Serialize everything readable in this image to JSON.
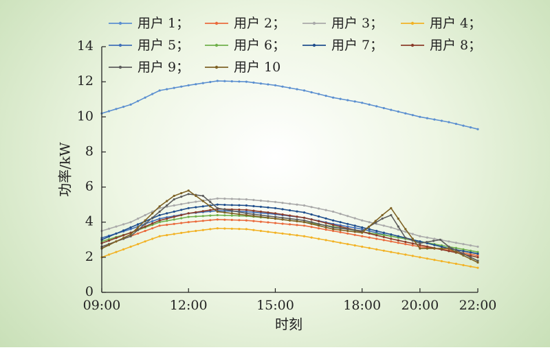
{
  "chart_data": {
    "type": "line",
    "xlabel": "时刻",
    "ylabel": "功率/kW",
    "ylim": [
      0,
      14
    ],
    "yticks": [
      "0",
      "2",
      "4",
      "6",
      "8",
      "10",
      "12",
      "14"
    ],
    "xticks": [
      "09:00",
      "12:00",
      "15:00",
      "18:00",
      "20:00",
      "22:00"
    ],
    "xtick_hours": [
      9,
      12,
      15,
      18,
      20,
      22
    ],
    "x_range_hours": [
      9,
      22
    ],
    "grid": false,
    "legend_position": "top",
    "series": [
      {
        "name": "用户 1；",
        "color": "#5b8fd0",
        "points": [
          [
            9,
            10.2
          ],
          [
            10,
            10.7
          ],
          [
            11,
            11.5
          ],
          [
            12,
            11.8
          ],
          [
            13,
            12.05
          ],
          [
            14,
            12.0
          ],
          [
            15,
            11.8
          ],
          [
            16,
            11.5
          ],
          [
            17,
            11.1
          ],
          [
            18,
            10.8
          ],
          [
            19,
            10.4
          ],
          [
            20,
            10.0
          ],
          [
            21,
            9.7
          ],
          [
            22,
            9.3
          ]
        ]
      },
      {
        "name": "用户 2；",
        "color": "#ea6a3c",
        "points": [
          [
            9,
            2.6
          ],
          [
            10,
            3.2
          ],
          [
            11,
            3.8
          ],
          [
            12,
            4.0
          ],
          [
            13,
            4.15
          ],
          [
            14,
            4.1
          ],
          [
            15,
            3.95
          ],
          [
            16,
            3.8
          ],
          [
            17,
            3.5
          ],
          [
            18,
            3.2
          ],
          [
            19,
            2.9
          ],
          [
            20,
            2.6
          ],
          [
            21,
            2.4
          ],
          [
            22,
            2.1
          ]
        ]
      },
      {
        "name": "用户 3；",
        "color": "#a9a9a9",
        "points": [
          [
            9,
            3.5
          ],
          [
            10,
            4.0
          ],
          [
            11,
            4.8
          ],
          [
            12,
            5.1
          ],
          [
            13,
            5.35
          ],
          [
            14,
            5.3
          ],
          [
            15,
            5.15
          ],
          [
            16,
            4.95
          ],
          [
            17,
            4.6
          ],
          [
            18,
            4.1
          ],
          [
            19,
            3.7
          ],
          [
            20,
            3.2
          ],
          [
            21,
            2.9
          ],
          [
            22,
            2.6
          ]
        ]
      },
      {
        "name": "用户 4；",
        "color": "#f2b224",
        "points": [
          [
            9,
            2.0
          ],
          [
            10,
            2.6
          ],
          [
            11,
            3.2
          ],
          [
            12,
            3.45
          ],
          [
            13,
            3.65
          ],
          [
            14,
            3.6
          ],
          [
            15,
            3.4
          ],
          [
            16,
            3.2
          ],
          [
            17,
            2.9
          ],
          [
            18,
            2.6
          ],
          [
            19,
            2.3
          ],
          [
            20,
            2.0
          ],
          [
            21,
            1.7
          ],
          [
            22,
            1.4
          ]
        ]
      },
      {
        "name": "用户 5；",
        "color": "#3f6fb8",
        "points": [
          [
            9,
            3.1
          ],
          [
            10,
            3.6
          ],
          [
            11,
            4.2
          ],
          [
            12,
            4.5
          ],
          [
            13,
            4.65
          ],
          [
            14,
            4.6
          ],
          [
            15,
            4.45
          ],
          [
            16,
            4.25
          ],
          [
            17,
            3.9
          ],
          [
            18,
            3.6
          ],
          [
            19,
            3.2
          ],
          [
            20,
            2.9
          ],
          [
            21,
            2.5
          ],
          [
            22,
            2.2
          ]
        ]
      },
      {
        "name": "用户 6；",
        "color": "#6fb04a",
        "points": [
          [
            9,
            2.9
          ],
          [
            10,
            3.4
          ],
          [
            11,
            4.0
          ],
          [
            12,
            4.3
          ],
          [
            13,
            4.4
          ],
          [
            14,
            4.35
          ],
          [
            15,
            4.2
          ],
          [
            16,
            4.0
          ],
          [
            17,
            3.75
          ],
          [
            18,
            3.45
          ],
          [
            19,
            3.2
          ],
          [
            20,
            2.9
          ],
          [
            21,
            2.6
          ],
          [
            22,
            2.3
          ]
        ]
      },
      {
        "name": "用户 7；",
        "color": "#1f4e8c",
        "points": [
          [
            9,
            3.0
          ],
          [
            10,
            3.7
          ],
          [
            11,
            4.4
          ],
          [
            12,
            4.8
          ],
          [
            13,
            5.0
          ],
          [
            14,
            4.95
          ],
          [
            15,
            4.8
          ],
          [
            16,
            4.55
          ],
          [
            17,
            4.1
          ],
          [
            18,
            3.7
          ],
          [
            19,
            3.3
          ],
          [
            20,
            2.9
          ],
          [
            21,
            2.5
          ],
          [
            22,
            2.2
          ]
        ]
      },
      {
        "name": "用户 8；",
        "color": "#8a3b2a",
        "points": [
          [
            9,
            2.8
          ],
          [
            10,
            3.4
          ],
          [
            11,
            4.1
          ],
          [
            12,
            4.5
          ],
          [
            13,
            4.75
          ],
          [
            14,
            4.7
          ],
          [
            15,
            4.5
          ],
          [
            16,
            4.25
          ],
          [
            17,
            3.85
          ],
          [
            18,
            3.45
          ],
          [
            19,
            3.05
          ],
          [
            20,
            2.7
          ],
          [
            21,
            2.35
          ],
          [
            22,
            2.0
          ]
        ]
      },
      {
        "name": "用户 9；",
        "color": "#5c5c5c",
        "points": [
          [
            9,
            2.6
          ],
          [
            10,
            3.2
          ],
          [
            11,
            4.6
          ],
          [
            11.5,
            5.3
          ],
          [
            12,
            5.6
          ],
          [
            12.5,
            5.5
          ],
          [
            13,
            4.8
          ],
          [
            14,
            4.5
          ],
          [
            15,
            4.3
          ],
          [
            16,
            4.1
          ],
          [
            17,
            3.7
          ],
          [
            18,
            3.5
          ],
          [
            18.7,
            4.2
          ],
          [
            19,
            4.4
          ],
          [
            19.5,
            3.1
          ],
          [
            20,
            2.8
          ],
          [
            20.7,
            3.0
          ],
          [
            21,
            2.6
          ],
          [
            22,
            1.8
          ]
        ]
      },
      {
        "name": "用户 10",
        "color": "#7e6224",
        "points": [
          [
            9,
            2.5
          ],
          [
            10,
            3.3
          ],
          [
            11,
            4.9
          ],
          [
            11.5,
            5.5
          ],
          [
            12,
            5.8
          ],
          [
            12.5,
            5.2
          ],
          [
            13,
            4.6
          ],
          [
            14,
            4.4
          ],
          [
            15,
            4.2
          ],
          [
            16,
            4.0
          ],
          [
            17,
            3.6
          ],
          [
            18,
            3.4
          ],
          [
            18.7,
            4.4
          ],
          [
            19,
            4.8
          ],
          [
            19.5,
            3.6
          ],
          [
            20,
            2.5
          ],
          [
            21,
            2.5
          ],
          [
            22,
            1.7
          ]
        ]
      }
    ]
  }
}
